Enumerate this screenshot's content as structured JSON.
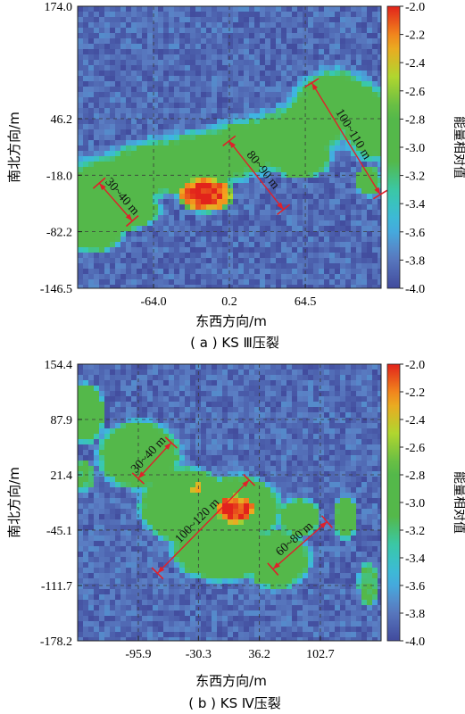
{
  "colors": {
    "low": "#414a9c",
    "mid_blue": "#5b7fc4",
    "cyan": "#3fb4e3",
    "teal": "#38c9ad",
    "green": "#54b84a",
    "yellow_green": "#b0d62f",
    "orange": "#f5a21e",
    "red": "#e2231b",
    "annotation": "#e0202a",
    "grid": "#3a3a3a"
  },
  "colorbar": {
    "label": "能量相对值",
    "ticks": [
      "-2.0",
      "-2.2",
      "-2.4",
      "-2.6",
      "-2.8",
      "-3.0",
      "-3.2",
      "-3.4",
      "-3.6",
      "-3.8",
      "-4.0"
    ],
    "range": [
      -4.0,
      -2.0
    ]
  },
  "chart_data": [
    {
      "type": "heatmap",
      "caption": "( a ) KS Ⅲ压裂",
      "xlabel": "东西方向/m",
      "ylabel": "南北方向/m",
      "xticks": [
        "-64.0",
        "0.2",
        "64.5"
      ],
      "yticks": [
        "174.0",
        "46.2",
        "-18.0",
        "-82.2",
        "-146.5"
      ],
      "xlim": [
        -128.3,
        128.7
      ],
      "ylim": [
        -146.5,
        174.0
      ],
      "value_range": [
        -4.0,
        -2.0
      ],
      "background_value": -3.85,
      "zones": [
        {
          "kind": "band",
          "points": [
            [
              -128,
              -40
            ],
            [
              -95,
              -25
            ],
            [
              -65,
              -10
            ],
            [
              -40,
              -5
            ],
            [
              -10,
              5
            ],
            [
              20,
              15
            ],
            [
              50,
              25
            ],
            [
              70,
              40
            ],
            [
              90,
              70
            ],
            [
              110,
              55
            ],
            [
              128,
              30
            ]
          ],
          "width": 38,
          "value": -2.95
        },
        {
          "kind": "blob",
          "cx": -115,
          "cy": -80,
          "rx": 30,
          "ry": 28,
          "value": -2.9
        },
        {
          "kind": "blob",
          "cx": -95,
          "cy": -55,
          "rx": 40,
          "ry": 30,
          "value": -2.92
        },
        {
          "kind": "blob",
          "cx": -30,
          "cy": -20,
          "rx": 35,
          "ry": 28,
          "value": -2.9
        },
        {
          "kind": "blob",
          "cx": 60,
          "cy": 5,
          "rx": 30,
          "ry": 30,
          "value": -2.95
        },
        {
          "kind": "blob",
          "cx": 118,
          "cy": -25,
          "rx": 12,
          "ry": 18,
          "value": -2.9
        },
        {
          "kind": "blob",
          "cx": -20,
          "cy": -40,
          "rx": 26,
          "ry": 22,
          "value": -2.2
        },
        {
          "kind": "blob",
          "cx": -20,
          "cy": -40,
          "rx": 18,
          "ry": 15,
          "value": -2.03
        }
      ],
      "annotations": [
        {
          "label": "30~40 m",
          "x1": -110,
          "y1": -27,
          "x2": -82,
          "y2": -70
        },
        {
          "label": "80~90 m",
          "x1": 0,
          "y1": 21,
          "x2": 46,
          "y2": -57
        },
        {
          "label": "100~110 m",
          "x1": 70,
          "y1": 87,
          "x2": 128,
          "y2": -40
        }
      ]
    },
    {
      "type": "heatmap",
      "caption": "( b ) KS Ⅳ压裂",
      "xlabel": "东西方向/m",
      "ylabel": "南北方向/m",
      "xticks": [
        "-95.9",
        "-30.3",
        "36.2",
        "102.7"
      ],
      "yticks": [
        "154.4",
        "87.9",
        "21.4",
        "-45.1",
        "-111.7",
        "-178.2"
      ],
      "xlim": [
        -162.1,
        169.0
      ],
      "ylim": [
        -178.2,
        154.4
      ],
      "value_range": [
        -4.0,
        -2.0
      ],
      "background_value": -3.85,
      "zones": [
        {
          "kind": "blob",
          "cx": -155,
          "cy": 95,
          "rx": 25,
          "ry": 40,
          "value": -2.95
        },
        {
          "kind": "blob",
          "cx": -95,
          "cy": 45,
          "rx": 50,
          "ry": 45,
          "value": -2.95
        },
        {
          "kind": "blob",
          "cx": -45,
          "cy": -15,
          "rx": 55,
          "ry": 50,
          "value": -2.9
        },
        {
          "kind": "blob",
          "cx": 10,
          "cy": -20,
          "rx": 55,
          "ry": 45,
          "value": -2.9
        },
        {
          "kind": "blob",
          "cx": -5,
          "cy": -70,
          "rx": 60,
          "ry": 40,
          "value": -2.92
        },
        {
          "kind": "blob",
          "cx": 55,
          "cy": -80,
          "rx": 40,
          "ry": 40,
          "value": -2.95
        },
        {
          "kind": "blob",
          "cx": 80,
          "cy": -30,
          "rx": 25,
          "ry": 25,
          "value": -2.95
        },
        {
          "kind": "blob",
          "cx": -155,
          "cy": 20,
          "rx": 12,
          "ry": 20,
          "value": -3.1
        },
        {
          "kind": "blob",
          "cx": 130,
          "cy": -30,
          "rx": 14,
          "ry": 28,
          "value": -3.0
        },
        {
          "kind": "blob",
          "cx": 155,
          "cy": -110,
          "rx": 12,
          "ry": 30,
          "value": -3.1
        },
        {
          "kind": "blob",
          "cx": 10,
          "cy": -20,
          "rx": 24,
          "ry": 20,
          "value": -2.2
        },
        {
          "kind": "blob",
          "cx": 10,
          "cy": -20,
          "rx": 17,
          "ry": 14,
          "value": -2.04
        },
        {
          "kind": "blob",
          "cx": -32,
          "cy": 4,
          "rx": 7,
          "ry": 8,
          "value": -2.4
        }
      ],
      "annotations": [
        {
          "label": "30~40 m",
          "x1": -60,
          "y1": 60,
          "x2": -96,
          "y2": 17
        },
        {
          "label": "100~120 m",
          "x1": 25,
          "y1": 15,
          "x2": -75,
          "y2": -97
        },
        {
          "label": "60~80 m",
          "x1": 110,
          "y1": -35,
          "x2": 51,
          "y2": -92
        }
      ]
    }
  ]
}
